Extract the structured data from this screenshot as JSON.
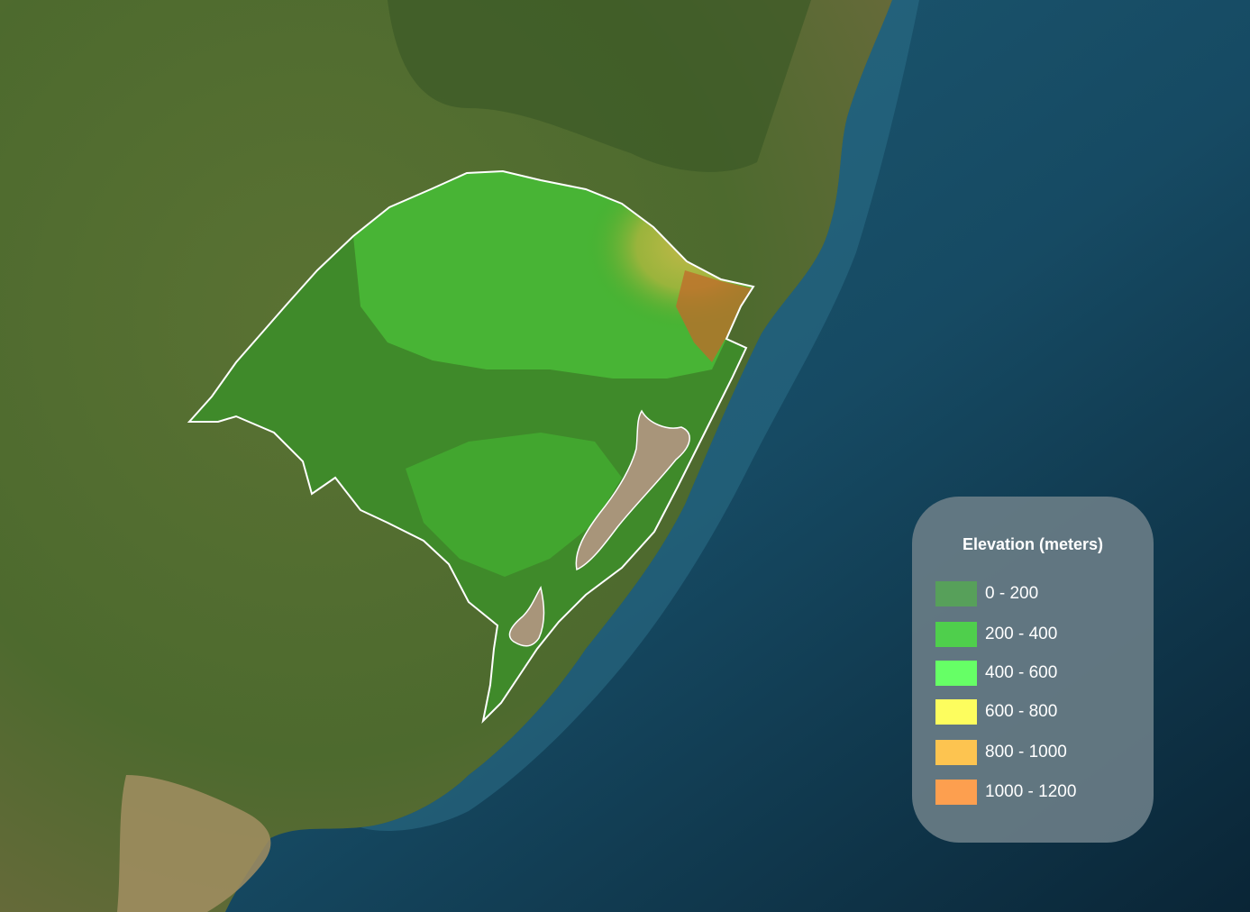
{
  "legend": {
    "title": "Elevation (meters)",
    "items": [
      {
        "label": "0 - 200",
        "color": "#57a05a"
      },
      {
        "label": "200 - 400",
        "color": "#4fcf4c"
      },
      {
        "label": "400 - 600",
        "color": "#66ff66"
      },
      {
        "label": "600 - 800",
        "color": "#fdfd5e"
      },
      {
        "label": "800 - 1000",
        "color": "#fdc450"
      },
      {
        "label": "1000 - 1200",
        "color": "#fd9f4f"
      }
    ]
  },
  "colors": {
    "ocean_shallow": "#1f5d74",
    "ocean_deep": "#0c2a3d",
    "land": "#51672f",
    "region_outline": "#ffffff",
    "lagoon": "#a8957a"
  }
}
